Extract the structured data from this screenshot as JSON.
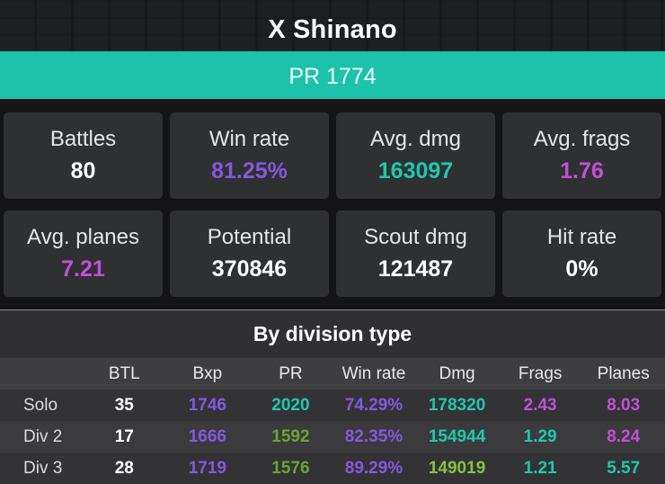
{
  "app": {
    "title": "X Shinano",
    "pr_banner": "PR 1774"
  },
  "colors": {
    "teal_banner": "#1cc2aa",
    "teal": "#1fc8ae",
    "purple": "#8458dc",
    "magenta": "#c24fd8",
    "green": "#68a52f",
    "lime": "#84c43f",
    "white": "#ffffff"
  },
  "stats_cards": [
    {
      "label": "Battles",
      "value": "80",
      "tone": "white"
    },
    {
      "label": "Win rate",
      "value": "81.25%",
      "tone": "purple"
    },
    {
      "label": "Avg. dmg",
      "value": "163097",
      "tone": "teal"
    },
    {
      "label": "Avg. frags",
      "value": "1.76",
      "tone": "magenta"
    },
    {
      "label": "Avg. planes",
      "value": "7.21",
      "tone": "magenta"
    },
    {
      "label": "Potential",
      "value": "370846",
      "tone": "white"
    },
    {
      "label": "Scout dmg",
      "value": "121487",
      "tone": "white"
    },
    {
      "label": "Hit rate",
      "value": "0%",
      "tone": "white"
    }
  ],
  "division_table": {
    "title": "By division type",
    "columns": [
      "BTL",
      "Bxp",
      "PR",
      "Win rate",
      "Dmg",
      "Frags",
      "Planes"
    ],
    "rows": [
      {
        "label": "Solo",
        "stripe": "odd",
        "btl": {
          "v": "35",
          "tone": "white"
        },
        "bxp": {
          "v": "1746",
          "tone": "purple"
        },
        "pr": {
          "v": "2020",
          "tone": "teal"
        },
        "win_rate": {
          "v": "74.29%",
          "tone": "purple"
        },
        "dmg": {
          "v": "178320",
          "tone": "teal"
        },
        "frags": {
          "v": "2.43",
          "tone": "magenta"
        },
        "planes": {
          "v": "8.03",
          "tone": "magenta"
        }
      },
      {
        "label": "Div 2",
        "stripe": "even",
        "btl": {
          "v": "17",
          "tone": "white"
        },
        "bxp": {
          "v": "1666",
          "tone": "purple"
        },
        "pr": {
          "v": "1592",
          "tone": "green"
        },
        "win_rate": {
          "v": "82.35%",
          "tone": "purple"
        },
        "dmg": {
          "v": "154944",
          "tone": "teal"
        },
        "frags": {
          "v": "1.29",
          "tone": "teal"
        },
        "planes": {
          "v": "8.24",
          "tone": "magenta"
        }
      },
      {
        "label": "Div 3",
        "stripe": "odd",
        "btl": {
          "v": "28",
          "tone": "white"
        },
        "bxp": {
          "v": "1719",
          "tone": "purple"
        },
        "pr": {
          "v": "1576",
          "tone": "green"
        },
        "win_rate": {
          "v": "89.29%",
          "tone": "purple"
        },
        "dmg": {
          "v": "149019",
          "tone": "lime"
        },
        "frags": {
          "v": "1.21",
          "tone": "teal"
        },
        "planes": {
          "v": "5.57",
          "tone": "teal"
        }
      }
    ]
  }
}
